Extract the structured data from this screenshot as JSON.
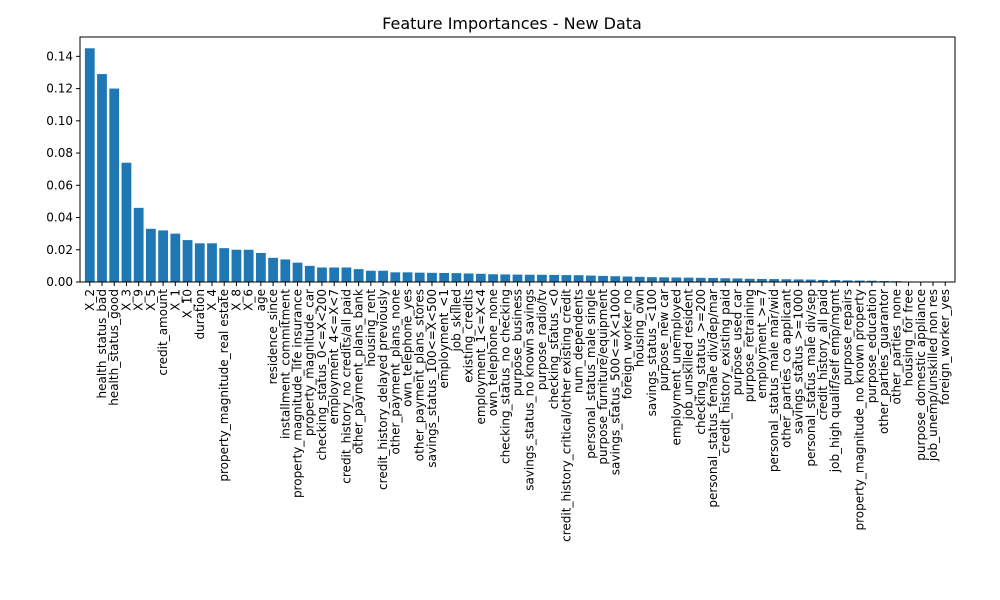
{
  "chart_data": {
    "type": "bar",
    "title": "Feature Importances - New Data",
    "xlabel": "",
    "ylabel": "",
    "ylim": [
      0,
      0.152
    ],
    "yticks": [
      0.0,
      0.02,
      0.04,
      0.06,
      0.08,
      0.1,
      0.12,
      0.14
    ],
    "ytick_labels": [
      "0.00",
      "0.02",
      "0.04",
      "0.06",
      "0.08",
      "0.10",
      "0.12",
      "0.14"
    ],
    "bar_color": "#1f77b4",
    "grid": false,
    "categories": [
      "X_2",
      "health_status_bad",
      "health_status_good",
      "X_3",
      "X_9",
      "X_5",
      "credit_amount",
      "X_1",
      "X_10",
      "duration",
      "X_4",
      "property_magnitude_real estate",
      "X_8",
      "X_6",
      "age",
      "residence_since",
      "installment_commitment",
      "property_magnitude_life insurance",
      "property_magnitude_car",
      "checking_status_0<=X<200",
      "employment_4<=X<7",
      "credit_history_no credits/all paid",
      "other_payment_plans_bank",
      "housing_rent",
      "credit_history_delayed previously",
      "other_payment_plans_none",
      "own_telephone_yes",
      "other_payment_plans_stores",
      "savings_status_100<=X<500",
      "employment_<1",
      "job_skilled",
      "existing_credits",
      "employment_1<=X<4",
      "own_telephone_none",
      "checking_status_no checking",
      "purpose_business",
      "savings_status_no known savings",
      "purpose_radio/tv",
      "checking_status_<0",
      "credit_history_critical/other existing credit",
      "num_dependents",
      "personal_status_male single",
      "purpose_furniture/equipment",
      "savings_status_500<=X<1000",
      "foreign_worker_no",
      "housing_own",
      "savings_status_<100",
      "purpose_new car",
      "employment_unemployed",
      "job_unskilled resident",
      "checking_status_>=200",
      "personal_status_female div/dep/mar",
      "credit_history_existing paid",
      "purpose_used car",
      "purpose_retraining",
      "employment_>=7",
      "personal_status_male mar/wid",
      "other_parties_co applicant",
      "savings_status_>=1000",
      "personal_status_male div/sep",
      "credit_history_all paid",
      "job_high qualif/self emp/mgmt",
      "purpose_repairs",
      "property_magnitude_no known property",
      "purpose_education",
      "other_parties_guarantor",
      "other_parties_none",
      "housing_for free",
      "purpose_domestic appliance",
      "job_unemp/unskilled non res",
      "foreign_worker_yes"
    ],
    "values": [
      0.145,
      0.129,
      0.12,
      0.074,
      0.046,
      0.033,
      0.032,
      0.03,
      0.026,
      0.024,
      0.024,
      0.021,
      0.02,
      0.02,
      0.018,
      0.015,
      0.014,
      0.012,
      0.01,
      0.009,
      0.009,
      0.009,
      0.008,
      0.007,
      0.007,
      0.006,
      0.006,
      0.0058,
      0.0057,
      0.0056,
      0.0055,
      0.0053,
      0.0051,
      0.0048,
      0.0047,
      0.0046,
      0.0045,
      0.0045,
      0.0044,
      0.0043,
      0.0042,
      0.004,
      0.0038,
      0.0036,
      0.0034,
      0.0032,
      0.003,
      0.0029,
      0.0028,
      0.0027,
      0.0026,
      0.0025,
      0.0023,
      0.0022,
      0.002,
      0.0019,
      0.0018,
      0.0017,
      0.0016,
      0.0015,
      0.0013,
      0.0012,
      0.001,
      0.0009,
      0.0008,
      0.0006,
      0.0005,
      0.0003,
      0.0002,
      0.0001,
      5e-05
    ]
  }
}
